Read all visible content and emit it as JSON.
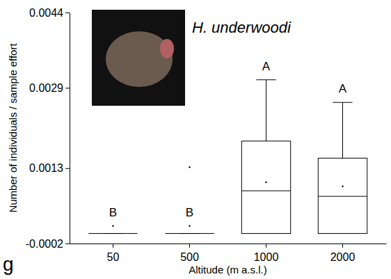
{
  "chart_data": {
    "type": "box",
    "title": "H. underwoodi",
    "panel_label": "g",
    "x_label": "Altitude (m a.s.l.)",
    "y_label": "Number of individuals / sample effort",
    "categories": [
      "50",
      "500",
      "1000",
      "2000"
    ],
    "boxes": [
      {
        "min": 0,
        "q1": 0,
        "median": 0,
        "q3": 0,
        "max": 0,
        "mean": 0.00015,
        "outliers": []
      },
      {
        "min": 0,
        "q1": 0,
        "median": 0,
        "q3": 0,
        "max": 0,
        "mean": 0.00015,
        "outliers": [
          0.00132
        ]
      },
      {
        "min": 0,
        "q1": 0,
        "median": 0.00085,
        "q3": 0.00184,
        "max": 0.00306,
        "mean": 0.00102,
        "outliers": []
      },
      {
        "min": 0,
        "q1": 0,
        "median": 0.00074,
        "q3": 0.0015,
        "max": 0.00261,
        "mean": 0.00094,
        "outliers": []
      }
    ],
    "group_labels": [
      "B",
      "B",
      "A",
      "A"
    ],
    "color": "#000000",
    "ylim": [
      -0.0002,
      0.0044
    ],
    "yticks": [
      -0.0002,
      0.0013,
      0.0029,
      0.0044
    ],
    "grid": false
  }
}
